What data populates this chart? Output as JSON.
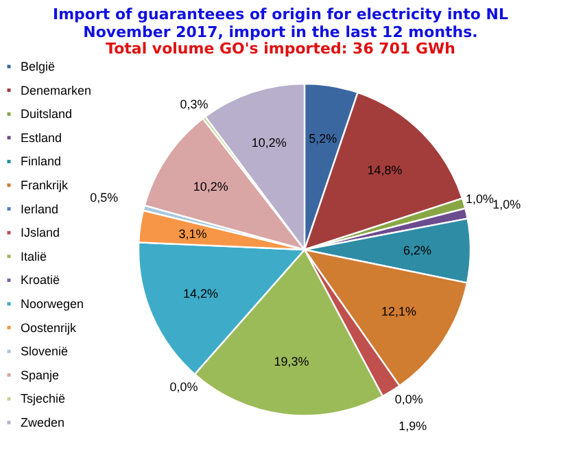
{
  "chart_data": {
    "type": "pie",
    "title": "Import of guaranteees of origin for electricity into NL November 2017, import in the last 12 months.",
    "subtitle": "Total volume GO's imported: 36 701 GWh",
    "categories": [
      "België",
      "Denemarken",
      "Duitsland",
      "Estland",
      "Finland",
      "Frankrijk",
      "Ierland",
      "IJsland",
      "Italië",
      "Kroatië",
      "Noorwegen",
      "Oostenrijk",
      "Slovenië",
      "Spanje",
      "Tsjechië",
      "Zweden"
    ],
    "values": [
      5.2,
      14.8,
      1.0,
      1.0,
      6.2,
      12.1,
      0.0,
      1.9,
      19.3,
      0.0,
      14.2,
      3.1,
      0.5,
      10.2,
      0.3,
      10.2
    ],
    "value_labels": [
      "5,2%",
      "14,8%",
      "1,0%",
      "1,0%",
      "6,2%",
      "12,1%",
      "0,0%",
      "1,9%",
      "19,3%",
      "0,0%",
      "14,2%",
      "3,1%",
      "0,5%",
      "10,2%",
      "0,3%",
      "10,2%"
    ],
    "colors": [
      "#3a67a0",
      "#a33d3c",
      "#88a644",
      "#6b4c8e",
      "#2e8ca5",
      "#d07c31",
      "#4f81bd",
      "#c0504d",
      "#9bbb59",
      "#8064a2",
      "#3eacc8",
      "#f79646",
      "#a9c8de",
      "#d9a6a5",
      "#c3d69b",
      "#b7afcb"
    ],
    "legend": "left"
  }
}
